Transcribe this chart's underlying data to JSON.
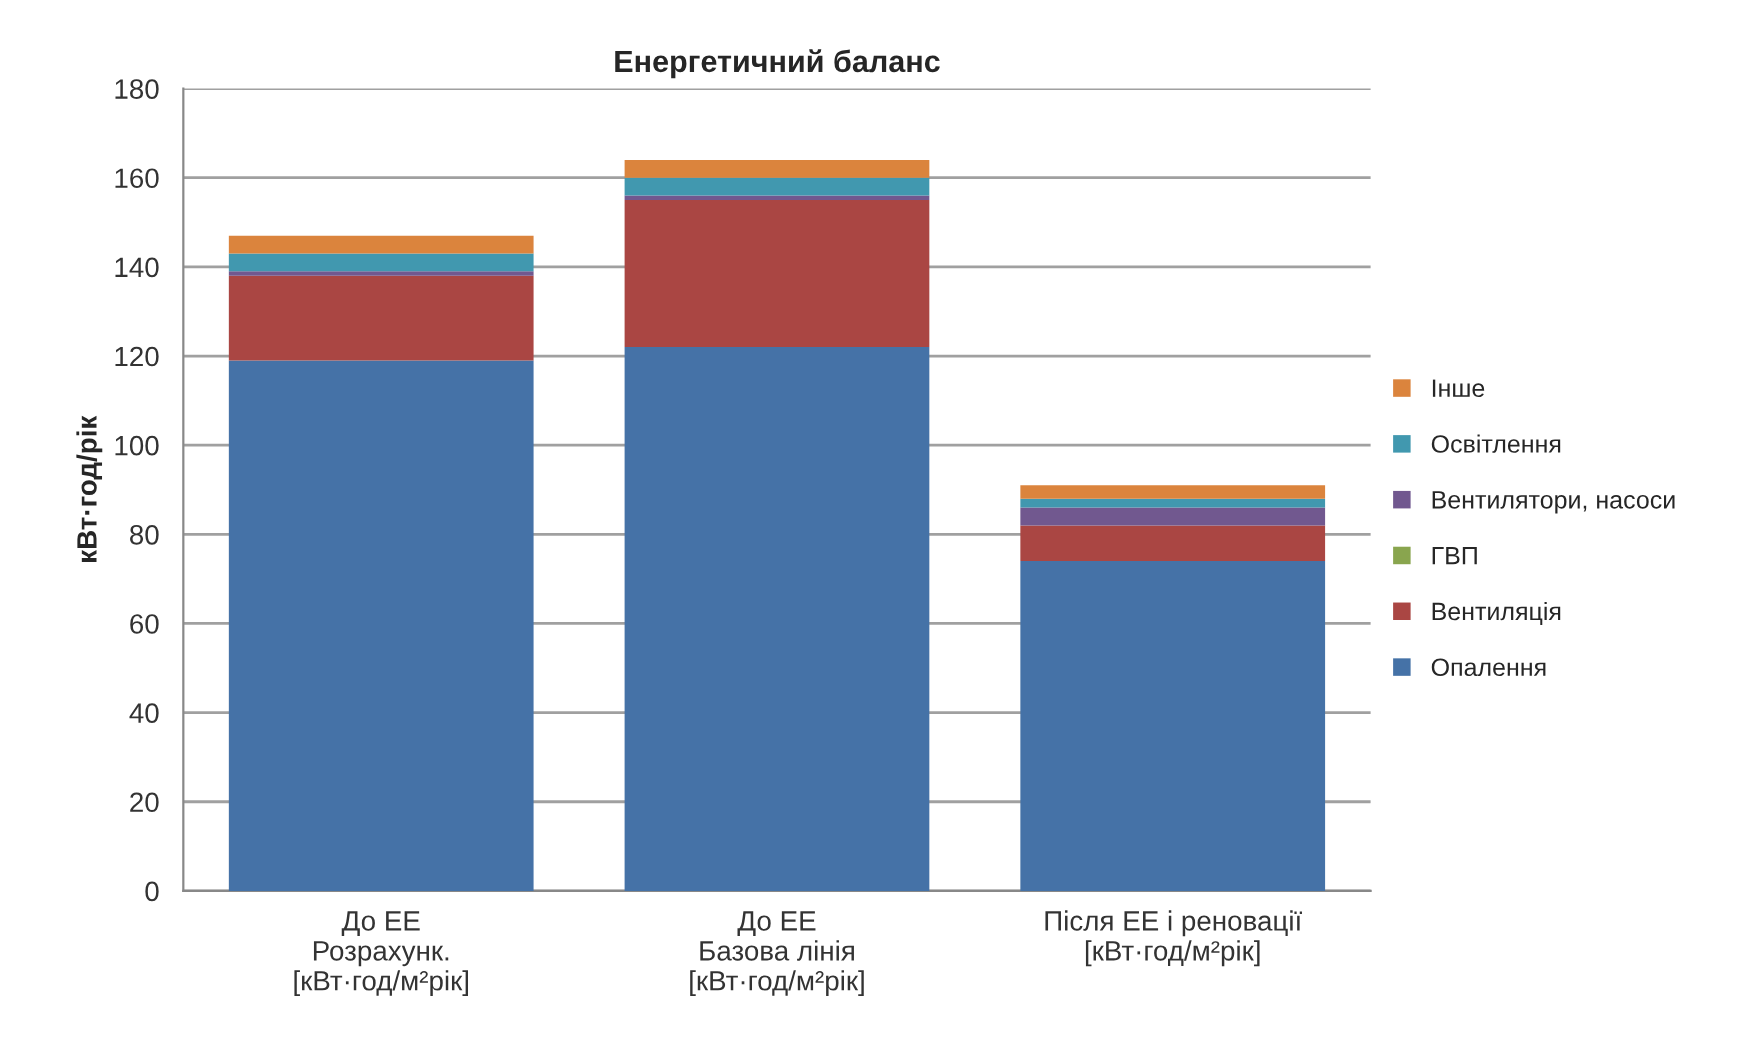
{
  "chart_data": {
    "type": "bar",
    "title": "Енергетичний баланс",
    "ylabel": "кВт·год/рік",
    "categories": [
      "До ЕЕ\nРозрахунк.\n[кВт·год/м²рік]",
      "До ЕЕ\nБазова лінія\n[кВт·год/м²рік]",
      "Після ЕЕ і реновації\n[кВт·год/м²рік]"
    ],
    "stacked": true,
    "series": [
      {
        "name": "Опалення",
        "color": "#4572a7",
        "values": [
          119,
          122,
          74
        ]
      },
      {
        "name": "Вентиляція",
        "color": "#aa4643",
        "values": [
          19,
          33,
          8
        ]
      },
      {
        "name": "ГВП",
        "color": "#89a54e",
        "values": [
          0,
          0,
          0
        ]
      },
      {
        "name": "Вентилятори, насоси",
        "color": "#71588f",
        "values": [
          1,
          1,
          4
        ]
      },
      {
        "name": "Освітлення",
        "color": "#4198af",
        "values": [
          4,
          4,
          2
        ]
      },
      {
        "name": "Інше",
        "color": "#db843d",
        "values": [
          4,
          4,
          3
        ]
      }
    ],
    "ylim": [
      0,
      180
    ],
    "yticks": [
      0,
      20,
      40,
      60,
      80,
      100,
      120,
      140,
      160,
      180
    ],
    "grid": "y",
    "legend": "right"
  }
}
